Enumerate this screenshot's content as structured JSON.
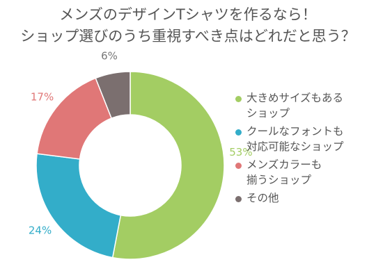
{
  "title": {
    "line1": "メンズのデザインTシャツを作るなら！",
    "line2": "ショップ選びのうち重視すべき点はどれだと思う？"
  },
  "chart_data": {
    "type": "donut",
    "categories": [
      "大きめサイズもあるショップ",
      "クールなフォントも対応可能なショップ",
      "メンズカラーも揃うショップ",
      "その他"
    ],
    "values": [
      53,
      24,
      17,
      6
    ],
    "unit": "%",
    "data_labels": [
      "53%",
      "24%",
      "17%",
      "6%"
    ],
    "colors": [
      "#a3cd63",
      "#33adc9",
      "#e07777",
      "#7b6f6f"
    ],
    "legend_position": "right"
  },
  "legend": [
    {
      "line1": "大きめサイズもある",
      "line2": "ショップ",
      "color": "#a3cd63"
    },
    {
      "line1": "クールなフォントも",
      "line2": "対応可能なショップ",
      "color": "#33adc9"
    },
    {
      "line1": "メンズカラーも",
      "line2": "揃うショップ",
      "color": "#e07777"
    },
    {
      "line1": "その他",
      "line2": "",
      "color": "#7b6f6f"
    }
  ]
}
